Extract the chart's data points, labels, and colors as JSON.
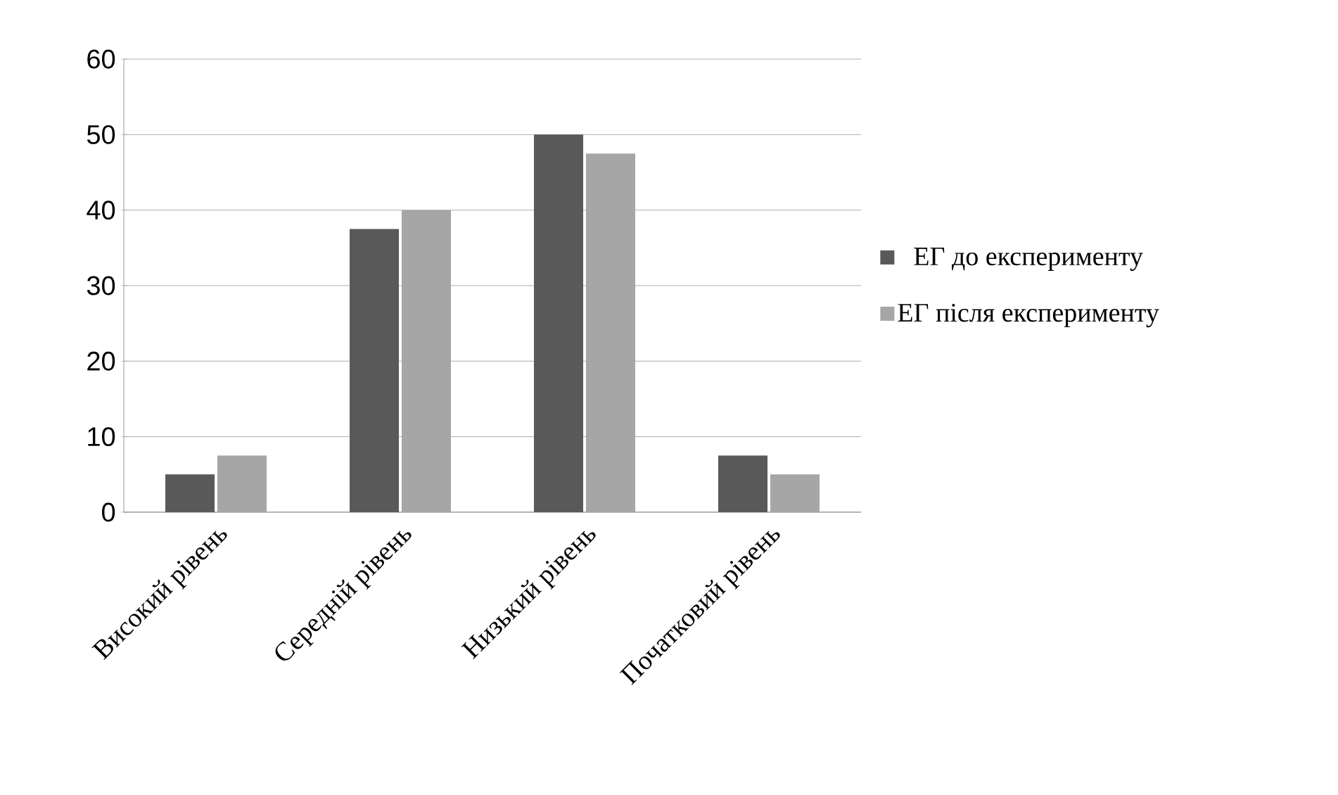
{
  "chart_data": {
    "type": "bar",
    "categories": [
      "Високий рівень",
      "Середній рівень",
      "Низький рівень",
      "Початковий рівень"
    ],
    "series": [
      {
        "name": "ЕГ до експерименту",
        "color": "#595959",
        "values": [
          5,
          37.5,
          50,
          7.5
        ]
      },
      {
        "name": "ЕГ після експерименту",
        "color": "#a6a6a6",
        "values": [
          7.5,
          40,
          47.5,
          5
        ]
      }
    ],
    "ylim": [
      0,
      60
    ],
    "yticks": [
      0,
      10,
      20,
      30,
      40,
      50,
      60
    ],
    "grid": "y",
    "legend": "right"
  }
}
